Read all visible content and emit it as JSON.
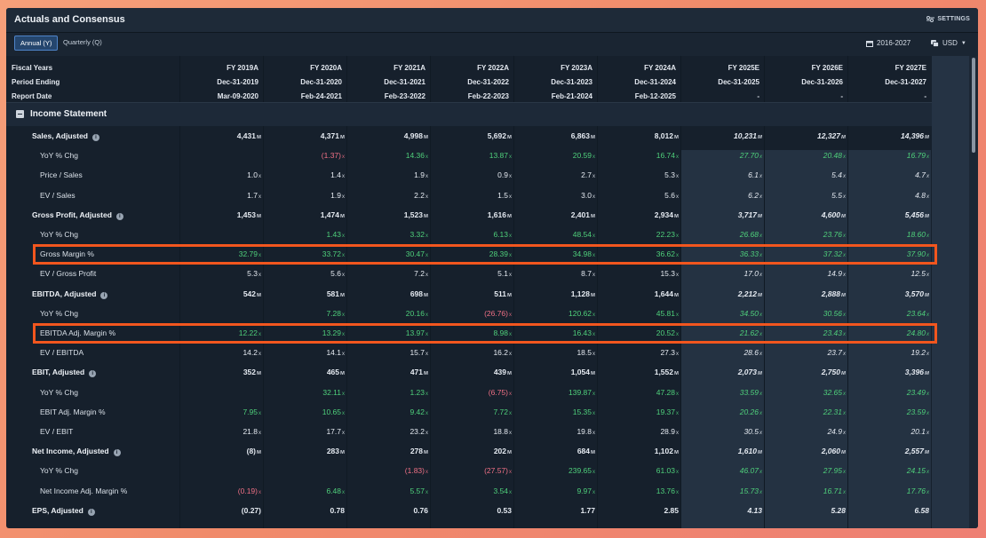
{
  "title": "Actuals and Consensus",
  "settings_label": "SETTINGS",
  "tabs": {
    "annual": "Annual (Y)",
    "quarterly": "Quarterly (Q)"
  },
  "range_label": "2016-2027",
  "currency_label": "USD",
  "header": {
    "fiscal_years_label": "Fiscal Years",
    "period_ending_label": "Period Ending",
    "report_date_label": "Report Date",
    "columns": [
      {
        "fy": "FY 2019A",
        "period": "Dec-31-2019",
        "report": "Mar-09-2020"
      },
      {
        "fy": "FY 2020A",
        "period": "Dec-31-2020",
        "report": "Feb-24-2021"
      },
      {
        "fy": "FY 2021A",
        "period": "Dec-31-2021",
        "report": "Feb-23-2022"
      },
      {
        "fy": "FY 2022A",
        "period": "Dec-31-2022",
        "report": "Feb-22-2023"
      },
      {
        "fy": "FY 2023A",
        "period": "Dec-31-2023",
        "report": "Feb-21-2024"
      },
      {
        "fy": "FY 2024A",
        "period": "Dec-31-2024",
        "report": "Feb-12-2025"
      },
      {
        "fy": "FY 2025E",
        "period": "Dec-31-2025",
        "report": "-"
      },
      {
        "fy": "FY 2026E",
        "period": "Dec-31-2026",
        "report": "-"
      },
      {
        "fy": "FY 2027E",
        "period": "Dec-31-2027",
        "report": "-"
      }
    ]
  },
  "section_label": "Income Statement",
  "highlight_color": "#f2561e",
  "positive_color": "#4fd07b",
  "negative_color": "#f07085",
  "rows": [
    {
      "label": "Sales, Adjusted",
      "main": true,
      "info": true,
      "values": [
        "4,431",
        "4,371",
        "4,998",
        "5,692",
        "6,863",
        "8,012",
        "10,231",
        "12,327",
        "14,396"
      ],
      "unit": "M"
    },
    {
      "label": "YoY % Chg",
      "values": [
        "",
        "(1.37)",
        "14.36",
        "13.87",
        "20.59",
        "16.74",
        "27.70",
        "20.48",
        "16.79"
      ],
      "unit": "x"
    },
    {
      "label": "Price / Sales",
      "values": [
        "1.0",
        "1.4",
        "1.9",
        "0.9",
        "2.7",
        "5.3",
        "6.1",
        "5.4",
        "4.7"
      ],
      "unit": "x"
    },
    {
      "label": "EV / Sales",
      "values": [
        "1.7",
        "1.9",
        "2.2",
        "1.5",
        "3.0",
        "5.6",
        "6.2",
        "5.5",
        "4.8"
      ],
      "unit": "x"
    },
    {
      "label": "Gross Profit, Adjusted",
      "main": true,
      "info": true,
      "values": [
        "1,453",
        "1,474",
        "1,523",
        "1,616",
        "2,401",
        "2,934",
        "3,717",
        "4,600",
        "5,456"
      ],
      "unit": "M"
    },
    {
      "label": "YoY % Chg",
      "values": [
        "",
        "1.43",
        "3.32",
        "6.13",
        "48.54",
        "22.23",
        "26.68",
        "23.76",
        "18.60"
      ],
      "unit": "x"
    },
    {
      "label": "Gross Margin %",
      "values": [
        "32.79",
        "33.72",
        "30.47",
        "28.39",
        "34.98",
        "36.62",
        "36.33",
        "37.32",
        "37.90"
      ],
      "unit": "x",
      "highlight": true
    },
    {
      "label": "EV / Gross Profit",
      "values": [
        "5.3",
        "5.6",
        "7.2",
        "5.1",
        "8.7",
        "15.3",
        "17.0",
        "14.9",
        "12.5"
      ],
      "unit": "x"
    },
    {
      "label": "EBITDA, Adjusted",
      "main": true,
      "info": true,
      "values": [
        "542",
        "581",
        "698",
        "511",
        "1,128",
        "1,644",
        "2,212",
        "2,888",
        "3,570"
      ],
      "unit": "M"
    },
    {
      "label": "YoY % Chg",
      "values": [
        "",
        "7.28",
        "20.16",
        "(26.76)",
        "120.62",
        "45.81",
        "34.50",
        "30.56",
        "23.64"
      ],
      "unit": "x"
    },
    {
      "label": "EBITDA Adj. Margin %",
      "values": [
        "12.22",
        "13.29",
        "13.97",
        "8.98",
        "16.43",
        "20.52",
        "21.62",
        "23.43",
        "24.80"
      ],
      "unit": "x",
      "highlight": true
    },
    {
      "label": "EV / EBITDA",
      "values": [
        "14.2",
        "14.1",
        "15.7",
        "16.2",
        "18.5",
        "27.3",
        "28.6",
        "23.7",
        "19.2"
      ],
      "unit": "x"
    },
    {
      "label": "EBIT, Adjusted",
      "main": true,
      "info": true,
      "values": [
        "352",
        "465",
        "471",
        "439",
        "1,054",
        "1,552",
        "2,073",
        "2,750",
        "3,396"
      ],
      "unit": "M"
    },
    {
      "label": "YoY % Chg",
      "values": [
        "",
        "32.11",
        "1.23",
        "(6.75)",
        "139.87",
        "47.28",
        "33.59",
        "32.65",
        "23.49"
      ],
      "unit": "x"
    },
    {
      "label": "EBIT Adj. Margin %",
      "values": [
        "7.95",
        "10.65",
        "9.42",
        "7.72",
        "15.35",
        "19.37",
        "20.26",
        "22.31",
        "23.59"
      ],
      "unit": "x"
    },
    {
      "label": "EV / EBIT",
      "values": [
        "21.8",
        "17.7",
        "23.2",
        "18.8",
        "19.8",
        "28.9",
        "30.5",
        "24.9",
        "20.1"
      ],
      "unit": "x"
    },
    {
      "label": "Net Income, Adjusted",
      "main": true,
      "info": true,
      "values": [
        "(8)",
        "283",
        "278",
        "202",
        "684",
        "1,102",
        "1,610",
        "2,060",
        "2,557"
      ],
      "unit": "M"
    },
    {
      "label": "YoY % Chg",
      "values": [
        "",
        "",
        "(1.83)",
        "(27.57)",
        "239.65",
        "61.03",
        "46.07",
        "27.95",
        "24.15"
      ],
      "unit": "x"
    },
    {
      "label": "Net Income Adj. Margin %",
      "values": [
        "(0.19)",
        "6.48",
        "5.57",
        "3.54",
        "9.97",
        "13.76",
        "15.73",
        "16.71",
        "17.76"
      ],
      "unit": "x"
    },
    {
      "label": "EPS, Adjusted",
      "main": true,
      "info": true,
      "values": [
        "(0.27)",
        "0.78",
        "0.76",
        "0.53",
        "1.77",
        "2.85",
        "4.13",
        "5.28",
        "6.58"
      ],
      "unit": ""
    }
  ]
}
